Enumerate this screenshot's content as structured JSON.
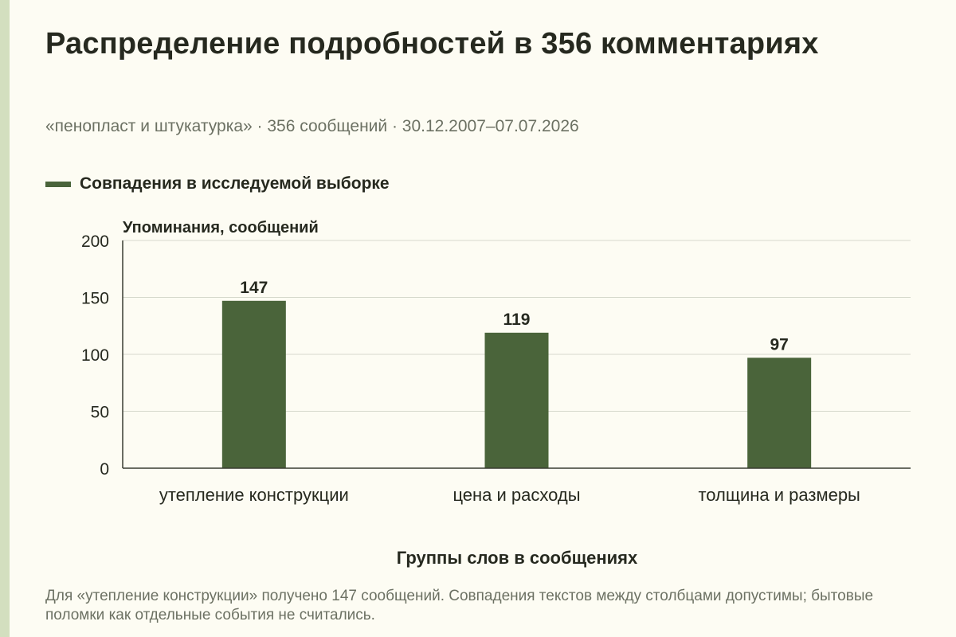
{
  "page": {
    "subtitle": "«пенопласт и штукатурка» · 356 сообщений · 30.12.2007–07.07.2026",
    "footnote": "Для «утепление конструкции» получено 147 сообщений. Совпадения текстов между столбцами допустимы; бытовые поломки как отдельные события не считались."
  },
  "colors": {
    "bar": "#4a643a",
    "accent_stripe": "#d3dfbf",
    "background": "#fdfcf3"
  },
  "chart_data": {
    "type": "bar",
    "title": "Распределение подробностей в 356 комментариях",
    "categories": [
      "утепление конструкции",
      "цена и расходы",
      "толщина и размеры"
    ],
    "series": [
      {
        "name": "Совпадения в исследуемой выборке",
        "values": [
          147,
          119,
          97
        ]
      }
    ],
    "data_labels": [
      "147",
      "119",
      "97"
    ],
    "xlabel": "Группы слов в сообщениях",
    "ylabel": "Упоминания, сообщений",
    "ylim": [
      0,
      200
    ],
    "yticks": [
      0,
      50,
      100,
      150,
      200
    ],
    "grid": true,
    "legend": "top-left"
  }
}
